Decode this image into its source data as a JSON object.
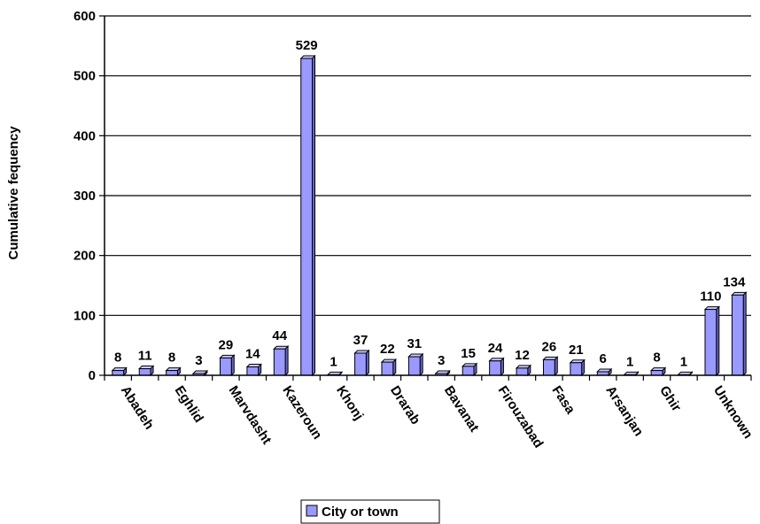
{
  "chart_data": {
    "type": "bar",
    "ylabel": "Cumulative fequency",
    "ylim": [
      0,
      600
    ],
    "yticks": [
      0,
      100,
      200,
      300,
      400,
      500,
      600
    ],
    "grid": true,
    "legend_position": "bottom",
    "x_tick_labels": [
      "Abadeh",
      "Eghlid",
      "Marvdasht",
      "Kazeroun",
      "Khonj",
      "Drarab",
      "Bavanat",
      "Firouzabad",
      "Fasa",
      "Arsanjan",
      "Ghir",
      "Unknown"
    ],
    "values": [
      8,
      11,
      8,
      3,
      29,
      14,
      44,
      529,
      1,
      37,
      22,
      31,
      3,
      15,
      24,
      12,
      26,
      21,
      6,
      1,
      8,
      1,
      110,
      134
    ],
    "series": [
      {
        "name": "City or town",
        "color": "#9999ff"
      }
    ]
  }
}
